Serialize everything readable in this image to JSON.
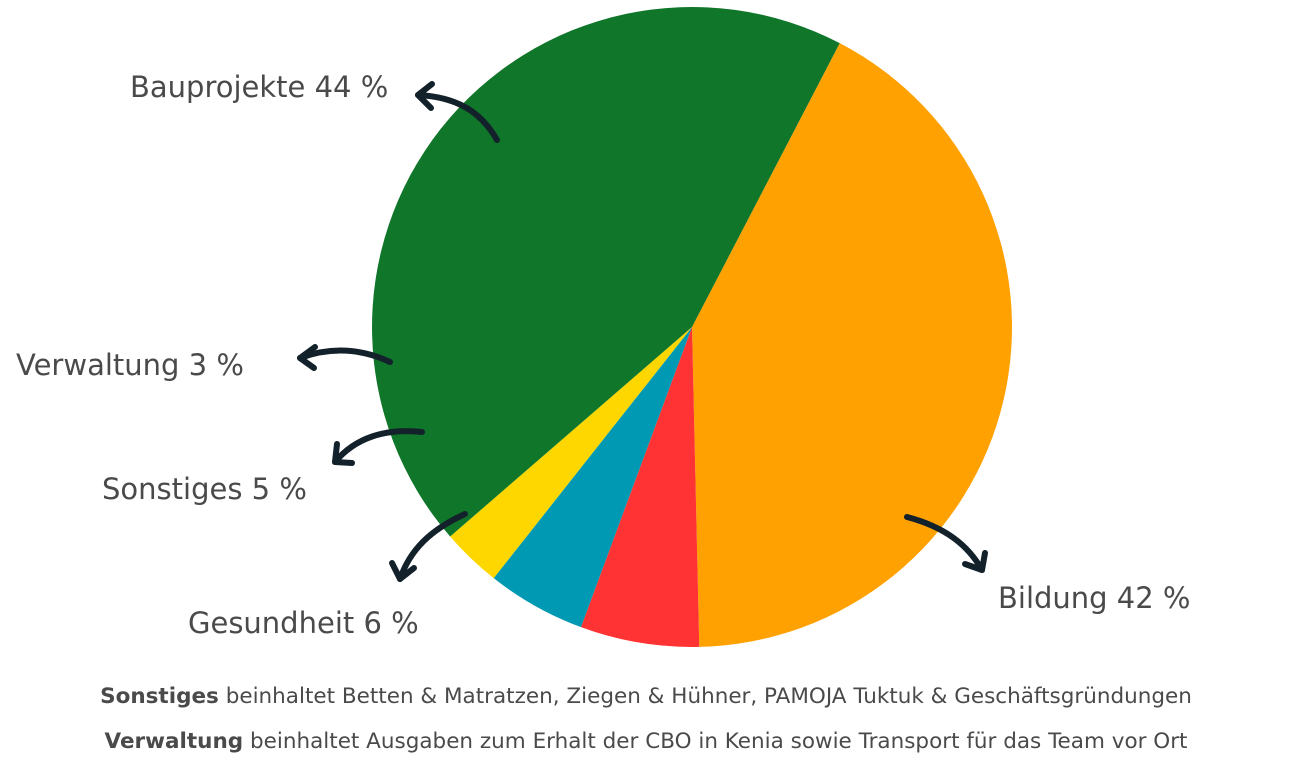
{
  "chart_data": {
    "type": "pie",
    "slices": [
      {
        "label": "Bauprojekte",
        "value": 44,
        "value_text": "44 %",
        "color": "#10762a"
      },
      {
        "label": "Bildung",
        "value": 42,
        "value_text": "42 %",
        "color": "#ffa100"
      },
      {
        "label": "Gesundheit",
        "value": 6,
        "value_text": "6 %",
        "color": "#ff3333"
      },
      {
        "label": "Sonstiges",
        "value": 5,
        "value_text": "5 %",
        "color": "#0099b3"
      },
      {
        "label": "Verwaltung",
        "value": 3,
        "value_text": "3 %",
        "color": "#ffd700"
      }
    ],
    "arrow_color": "#13212b",
    "footnotes": [
      {
        "term": "Sonstiges",
        "text": "beinhaltet Betten & Matratzen, Ziegen & Hühner, PAMOJA Tuktuk & Geschäftsgründungen"
      },
      {
        "term": "Verwaltung",
        "text": "beinhaltet Ausgaben zum Erhalt der CBO in Kenia sowie Transport für das Team vor Ort"
      }
    ]
  }
}
